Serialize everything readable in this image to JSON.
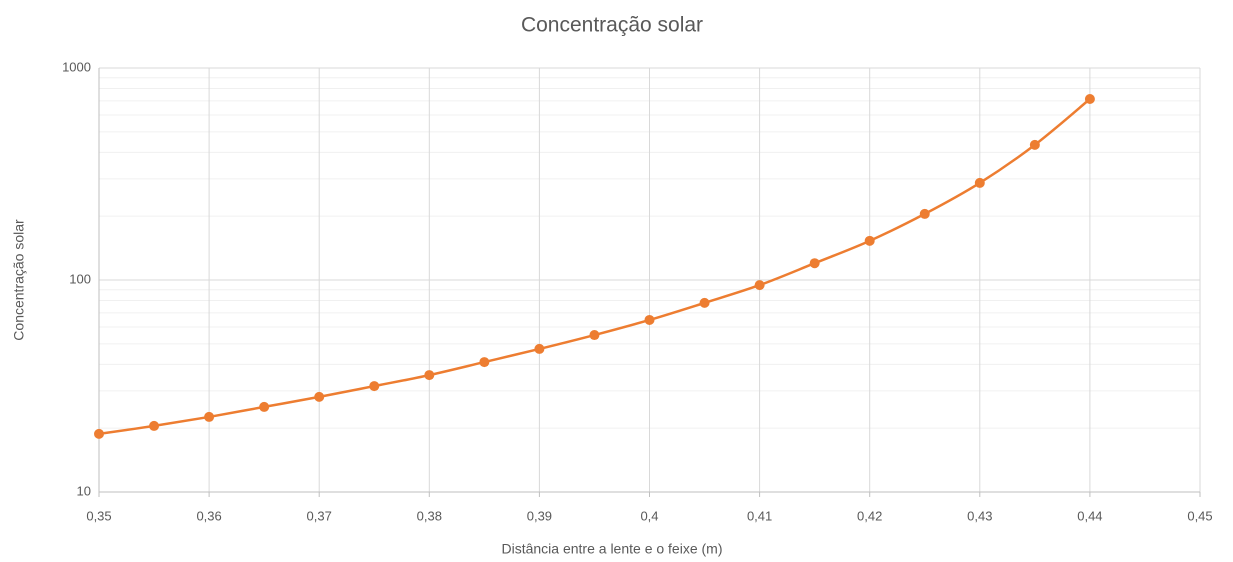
{
  "chart_data": {
    "type": "line",
    "title": "Concentração solar",
    "x_label": "Distância entre a lente e o feixe (m)",
    "y_label": "Concentração solar",
    "x": [
      0.35,
      0.355,
      0.36,
      0.365,
      0.37,
      0.375,
      0.38,
      0.385,
      0.39,
      0.395,
      0.4,
      0.405,
      0.41,
      0.415,
      0.42,
      0.425,
      0.43,
      0.435,
      0.44
    ],
    "series": [
      {
        "name": "Concentração solar",
        "color": "#ed7d31",
        "values": [
          18.8,
          20.5,
          22.6,
          25.2,
          28.1,
          31.6,
          35.6,
          41,
          47.3,
          55,
          64.8,
          78,
          94.6,
          120,
          153,
          205,
          287,
          434,
          714
        ]
      }
    ],
    "xlim": [
      0.35,
      0.45
    ],
    "xticks": [
      {
        "value": 0.35,
        "label": "0,35"
      },
      {
        "value": 0.36,
        "label": "0,36"
      },
      {
        "value": 0.37,
        "label": "0,37"
      },
      {
        "value": 0.38,
        "label": "0,38"
      },
      {
        "value": 0.39,
        "label": "0,39"
      },
      {
        "value": 0.4,
        "label": "0,4"
      },
      {
        "value": 0.41,
        "label": "0,41"
      },
      {
        "value": 0.42,
        "label": "0,42"
      },
      {
        "value": 0.43,
        "label": "0,43"
      },
      {
        "value": 0.44,
        "label": "0,44"
      },
      {
        "value": 0.45,
        "label": "0,45"
      }
    ],
    "ylim": [
      10,
      1000
    ],
    "yticks": [
      10,
      100,
      1000
    ],
    "log_y": true,
    "grid": true,
    "minor_grid": true,
    "smooth": true
  }
}
